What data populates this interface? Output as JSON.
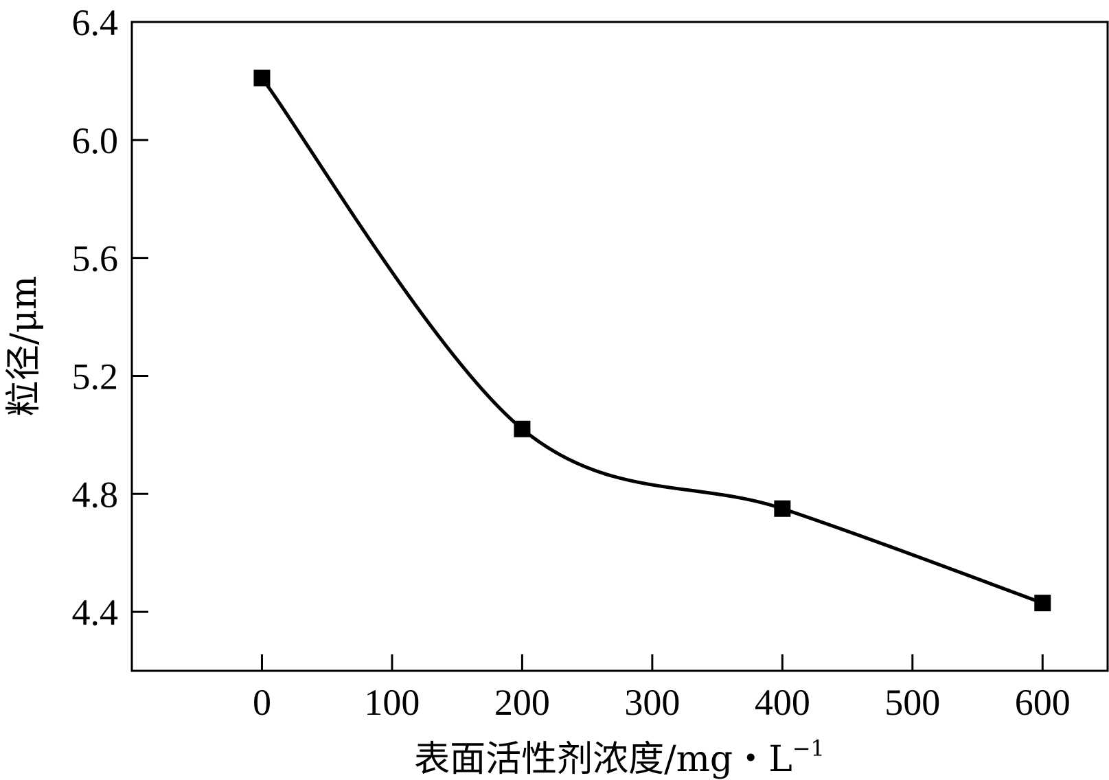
{
  "chart_data": {
    "type": "line",
    "x": [
      0,
      200,
      400,
      600
    ],
    "series": [
      {
        "values": [
          6.21,
          5.02,
          4.75,
          4.43
        ]
      }
    ],
    "xlabel": "表面活性剂浓度/mg・L",
    "xlabel_sup": "−1",
    "ylabel": "粒径/μm",
    "xlim": [
      -100,
      650
    ],
    "ylim": [
      4.2,
      6.4
    ],
    "xticks": [
      0,
      100,
      200,
      300,
      400,
      500,
      600
    ],
    "xtick_labels": [
      "0",
      "100",
      "200",
      "300",
      "400",
      "500",
      "600"
    ],
    "yticks": [
      4.4,
      4.8,
      5.2,
      5.6,
      6.0,
      6.4
    ],
    "ytick_labels": [
      "4.4",
      "4.8",
      "5.2",
      "5.6",
      "6.0",
      "6.4"
    ],
    "grid": false,
    "legend": "none",
    "line_style": "smooth",
    "marker": "square",
    "color": "#000000"
  }
}
